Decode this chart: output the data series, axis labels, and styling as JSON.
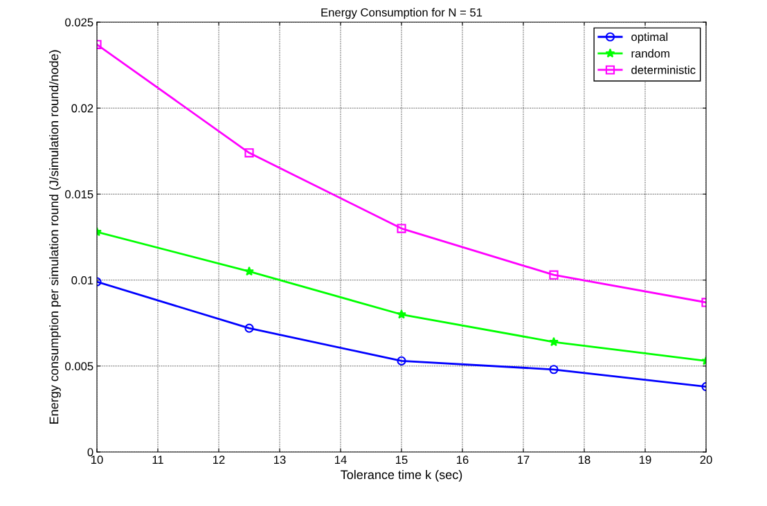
{
  "chart_data": {
    "type": "line",
    "title": "Energy Consumption for N = 51",
    "xlabel": "Tolerance time k (sec)",
    "ylabel": "Energy consumption per simulation round (J/simulation round/node)",
    "x": [
      10,
      12.5,
      15,
      17.5,
      20
    ],
    "series": [
      {
        "name": "optimal",
        "color": "#0000ff",
        "marker": "circle",
        "values": [
          0.0099,
          0.0072,
          0.0053,
          0.0048,
          0.0038
        ]
      },
      {
        "name": "random",
        "color": "#00ff00",
        "marker": "star",
        "values": [
          0.0128,
          0.0105,
          0.008,
          0.0064,
          0.0053
        ]
      },
      {
        "name": "deterministic",
        "color": "#ff00ff",
        "marker": "square",
        "values": [
          0.0237,
          0.0174,
          0.013,
          0.0103,
          0.0087
        ]
      }
    ],
    "xlim": [
      10,
      20
    ],
    "xticks": [
      10,
      11,
      12,
      13,
      14,
      15,
      16,
      17,
      18,
      19,
      20
    ],
    "ylim": [
      0,
      0.025
    ],
    "yticks": [
      0,
      0.005,
      0.01,
      0.015,
      0.02,
      0.025
    ],
    "grid": true,
    "legend": "top right",
    "line_style": "solid"
  }
}
